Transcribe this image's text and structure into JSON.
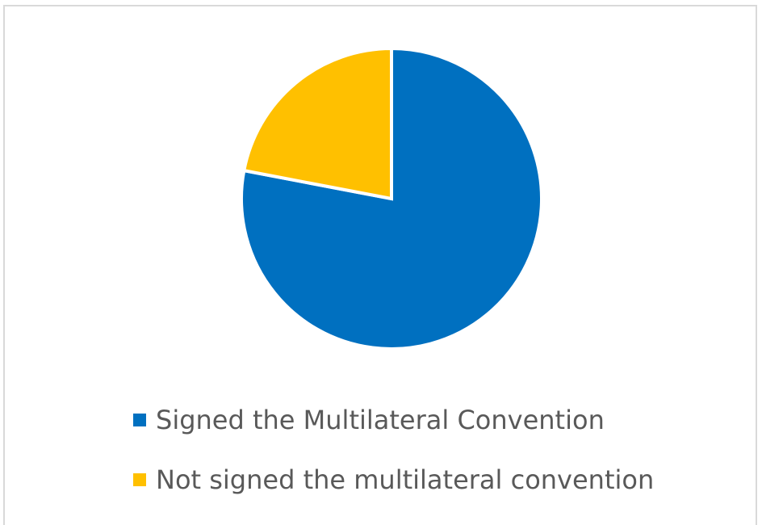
{
  "chart_data": {
    "type": "pie",
    "title": "",
    "categories": [
      "Signed the Multilateral Convention",
      "Not signed the multilateral convention"
    ],
    "values": [
      78,
      22
    ],
    "colors": [
      "#0070C0",
      "#FFC000"
    ],
    "start_angle_deg": 0,
    "direction": "clockwise",
    "legend_position": "bottom"
  }
}
